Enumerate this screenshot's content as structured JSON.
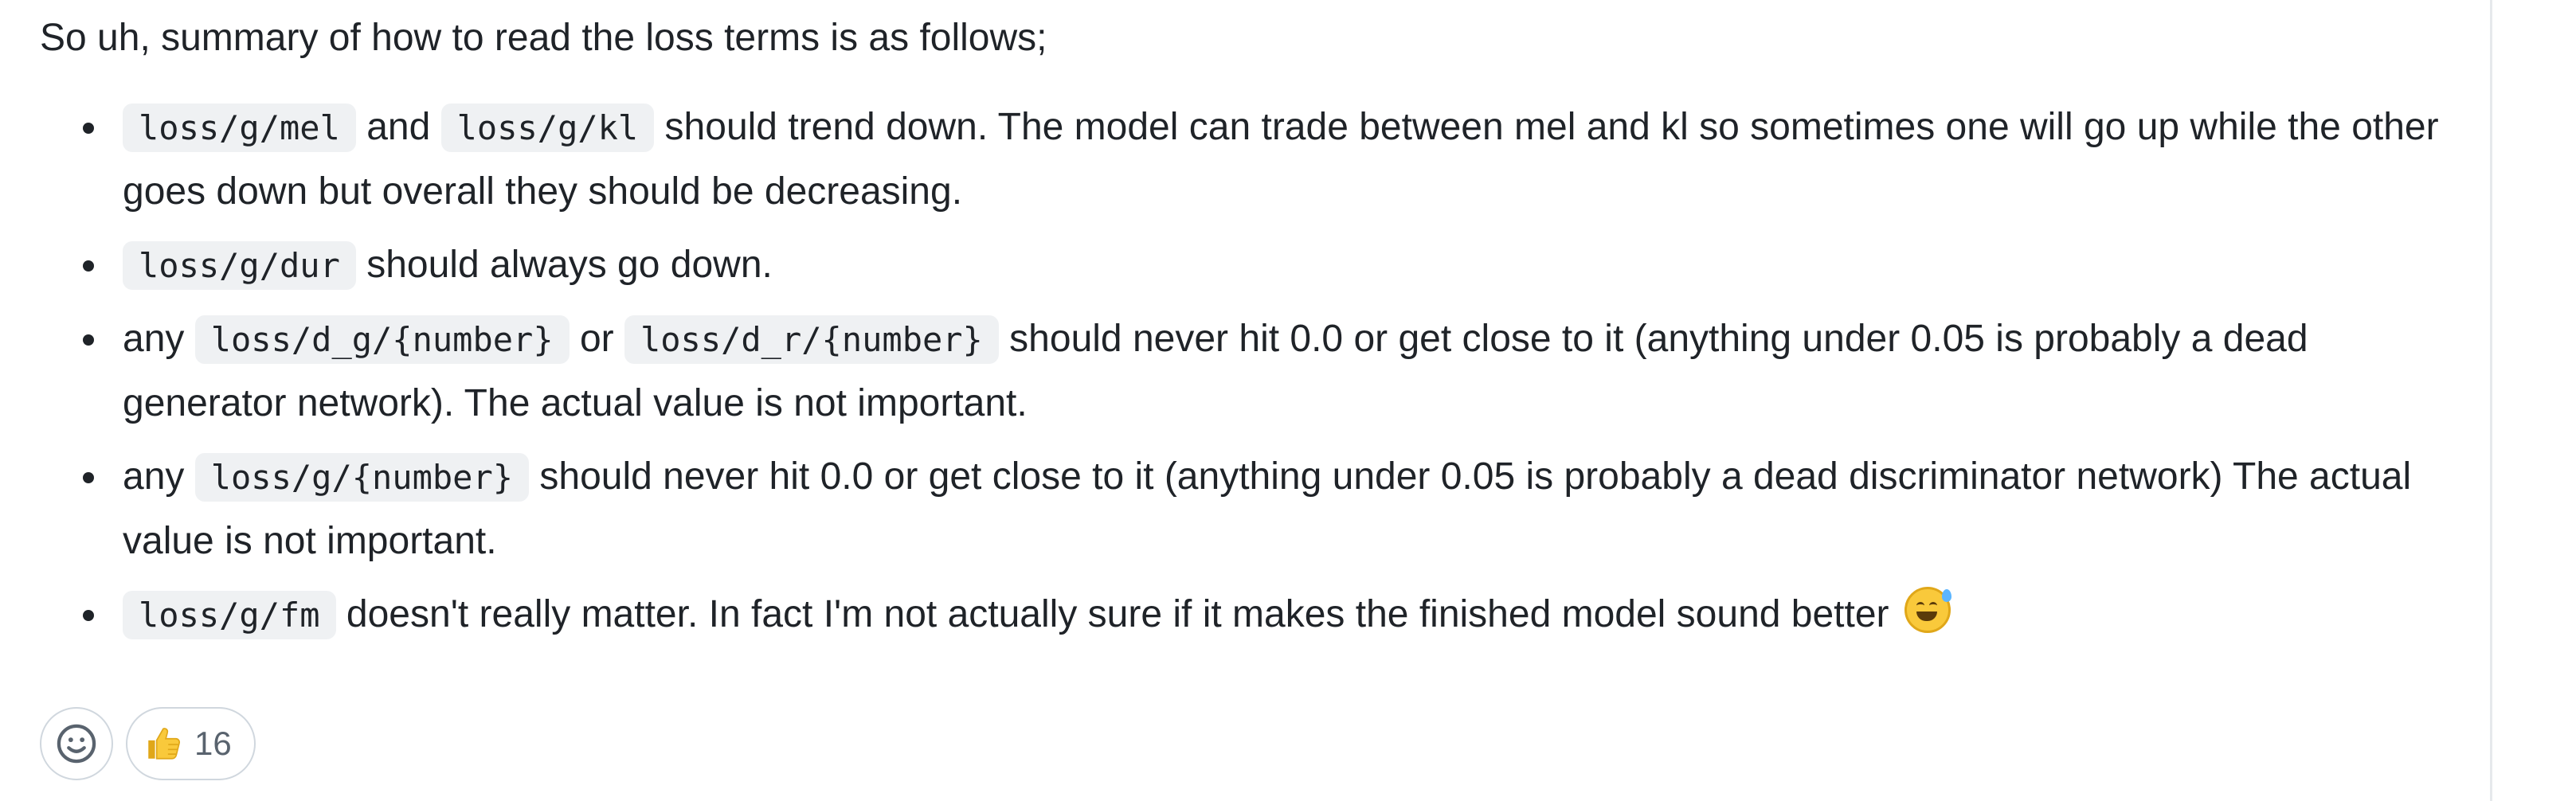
{
  "comment": {
    "intro": "So uh, summary of how to read the loss terms is as follows;",
    "items": [
      {
        "code1": "loss/g/mel",
        "text1": " and ",
        "code2": "loss/g/kl",
        "text2": " should trend down. The model can trade between mel and kl so sometimes one will go up while the other goes down but overall they should be decreasing."
      },
      {
        "code1": "loss/g/dur",
        "text1": " should always go down."
      },
      {
        "prefix": "any ",
        "code1": "loss/d_g/{number}",
        "text1": " or ",
        "code2": "loss/d_r/{number}",
        "text2": " should never hit 0.0 or get close to it (anything under 0.05 is probably a dead generator network). The actual value is not important."
      },
      {
        "prefix": "any ",
        "code1": "loss/g/{number}",
        "text1": " should never hit 0.0 or get close to it (anything under 0.05 is probably a dead discriminator network) The actual value is not important."
      },
      {
        "code1": "loss/g/fm",
        "text1": " doesn't really matter. In fact I'm not actually sure if it makes the finished model sound better ",
        "emoji": "grinning-face-with-sweat-icon"
      }
    ]
  },
  "reactions": {
    "add_reaction_icon": "smiley-face-icon",
    "thumbs_up": {
      "icon": "thumbs-up-icon",
      "count": "16"
    }
  }
}
